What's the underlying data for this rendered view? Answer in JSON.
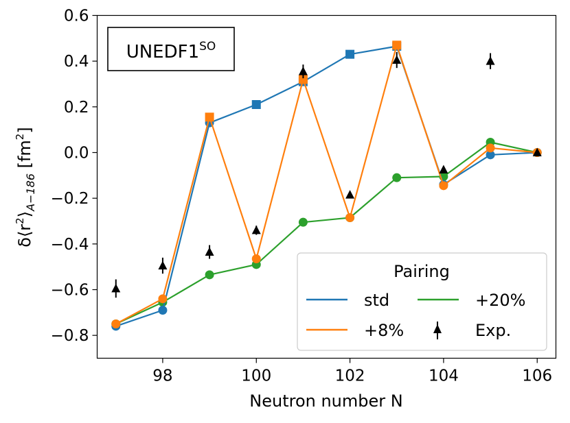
{
  "chart_data": {
    "type": "line",
    "annotation": {
      "main": "UNEDF1",
      "superscript": "SO"
    },
    "xlabel": "Neutron number N",
    "ylabel": {
      "delta": "δ⟨r",
      "sq": "2",
      "close": "⟩",
      "sub": "A−186",
      "unit": " [fm",
      "unit_sq": "2",
      "unit_close": "]"
    },
    "xlim": [
      96.6,
      106.4
    ],
    "ylim": [
      -0.9,
      0.6
    ],
    "xticks": [
      98,
      100,
      102,
      104,
      106
    ],
    "xtick_labels": [
      "98",
      "100",
      "102",
      "104",
      "106"
    ],
    "yticks": [
      -0.8,
      -0.6,
      -0.4,
      -0.2,
      0.0,
      0.2,
      0.4,
      0.6
    ],
    "ytick_labels": [
      "−0.8",
      "−0.6",
      "−0.4",
      "−0.2",
      "0.0",
      "0.2",
      "0.4",
      "0.6"
    ],
    "legend": {
      "title": "Pairing",
      "placement": "lower right"
    },
    "series": [
      {
        "name": "std",
        "color": "#1f77b4",
        "x": [
          97,
          98,
          99,
          100,
          101,
          102,
          103,
          104,
          105,
          106
        ],
        "y": [
          -0.76,
          -0.69,
          0.13,
          0.21,
          0.31,
          0.43,
          0.465,
          -0.14,
          -0.01,
          0.0
        ],
        "markers": [
          "circle",
          "circle",
          "circle",
          "square",
          "square",
          "square",
          "square",
          "circle",
          "circle",
          "circle"
        ]
      },
      {
        "name": "+8%",
        "color": "#ff7f0e",
        "x": [
          97,
          98,
          99,
          100,
          101,
          102,
          103,
          104,
          105,
          106
        ],
        "y": [
          -0.75,
          -0.64,
          0.155,
          -0.465,
          0.32,
          -0.285,
          0.47,
          -0.145,
          0.02,
          0.0
        ],
        "markers": [
          "circle",
          "circle",
          "square",
          "circle",
          "square",
          "circle",
          "square",
          "circle",
          "circle",
          "circle"
        ]
      },
      {
        "name": "+20%",
        "color": "#2ca02c",
        "x": [
          97,
          98,
          99,
          100,
          101,
          102,
          103,
          104,
          105,
          106
        ],
        "y": [
          -0.75,
          -0.655,
          -0.535,
          -0.49,
          -0.305,
          -0.285,
          -0.11,
          -0.105,
          0.045,
          0.0
        ],
        "markers": [
          "circle",
          "circle",
          "circle",
          "circle",
          "circle",
          "circle",
          "circle",
          "circle",
          "circle",
          "circle"
        ]
      }
    ],
    "experiment": {
      "name": "Exp.",
      "color": "#000000",
      "x": [
        97,
        98,
        99,
        100,
        101,
        102,
        103,
        104,
        105,
        106
      ],
      "y": [
        -0.595,
        -0.495,
        -0.435,
        -0.34,
        0.355,
        -0.185,
        0.405,
        -0.075,
        0.4,
        0.0
      ],
      "err": [
        0.04,
        0.035,
        0.03,
        0.02,
        0.03,
        0.015,
        0.035,
        0.015,
        0.035,
        0.0
      ]
    }
  }
}
